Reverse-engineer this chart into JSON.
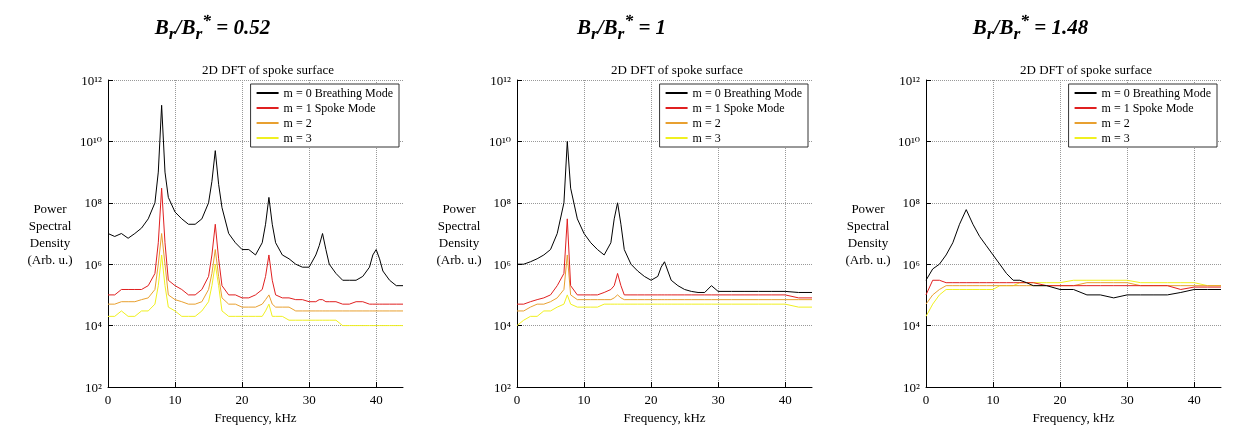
{
  "chart_data": [
    {
      "type": "line",
      "title": "B$_{r}$/B$_{r}$$^{*}$ = 0.52",
      "subtitle": "2D DFT of spoke surface",
      "xlabel": "Frequency, kHz",
      "ylabel": "Power\nSpectral\nDensity\n(Arb. u.)",
      "x": [
        0,
        1,
        2,
        3,
        4,
        5,
        6,
        7,
        7.5,
        8,
        8.5,
        9,
        10,
        11,
        12,
        13,
        14,
        15,
        15.5,
        16,
        16.5,
        17,
        18,
        19,
        20,
        21,
        22,
        23,
        23.5,
        24,
        24.5,
        25,
        26,
        27,
        28,
        29,
        30,
        31,
        31.5,
        32,
        32.5,
        33,
        34,
        35,
        36,
        37,
        38,
        39,
        39.5,
        40,
        40.5,
        41,
        42,
        43,
        44
      ],
      "series": [
        {
          "name": "m = 0 Breathing Mode",
          "color": "#000000",
          "values": [
            10000000.0,
            8000000.0,
            10000000.0,
            7000000.0,
            10000000.0,
            15000000.0,
            30000000.0,
            100000000.0,
            1000000000.0,
            150000000000.0,
            1000000000.0,
            150000000.0,
            50000000.0,
            30000000.0,
            20000000.0,
            20000000.0,
            30000000.0,
            100000000.0,
            500000000.0,
            5000000000.0,
            400000000.0,
            70000000.0,
            10000000.0,
            5000000.0,
            3000000.0,
            3000000.0,
            2000000.0,
            5000000.0,
            20000000.0,
            150000000.0,
            20000000.0,
            5000000.0,
            2000000.0,
            1500000.0,
            1000000.0,
            800000.0,
            800000.0,
            2000000.0,
            4000000.0,
            10000000.0,
            3000000.0,
            1000000.0,
            500000.0,
            300000.0,
            300000.0,
            300000.0,
            400000.0,
            800000.0,
            2000000.0,
            3000000.0,
            1500000.0,
            600000.0,
            300000.0,
            200000.0,
            200000.0
          ]
        },
        {
          "name": "m = 1 Spoke Mode",
          "color": "#e02020",
          "values": [
            100000.0,
            100000.0,
            150000.0,
            150000.0,
            150000.0,
            150000.0,
            200000.0,
            500000.0,
            5000000.0,
            300000000.0,
            5000000.0,
            300000.0,
            200000.0,
            150000.0,
            100000.0,
            100000.0,
            150000.0,
            400000.0,
            2000000.0,
            20000000.0,
            1500000.0,
            200000.0,
            100000.0,
            100000.0,
            80000.0,
            80000.0,
            100000.0,
            150000.0,
            400000.0,
            2000000.0,
            300000.0,
            100000.0,
            80000.0,
            80000.0,
            70000.0,
            70000.0,
            60000.0,
            60000.0,
            70000.0,
            70000.0,
            60000.0,
            60000.0,
            60000.0,
            50000.0,
            50000.0,
            60000.0,
            60000.0,
            50000.0,
            50000.0,
            50000.0,
            50000.0,
            50000.0,
            50000.0,
            50000.0,
            50000.0
          ]
        },
        {
          "name": "m = 2",
          "color": "#e8a030",
          "values": [
            50000.0,
            50000.0,
            60000.0,
            60000.0,
            60000.0,
            70000.0,
            80000.0,
            150000.0,
            1000000.0,
            10000000.0,
            1000000.0,
            100000.0,
            70000.0,
            60000.0,
            50000.0,
            50000.0,
            60000.0,
            150000.0,
            500000.0,
            3000000.0,
            400000.0,
            80000.0,
            50000.0,
            50000.0,
            40000.0,
            40000.0,
            40000.0,
            50000.0,
            70000.0,
            100000.0,
            50000.0,
            40000.0,
            40000.0,
            40000.0,
            30000.0,
            30000.0,
            30000.0,
            30000.0,
            30000.0,
            30000.0,
            30000.0,
            30000.0,
            30000.0,
            30000.0,
            30000.0,
            30000.0,
            30000.0,
            30000.0,
            30000.0,
            30000.0,
            30000.0,
            30000.0,
            30000.0,
            30000.0,
            30000.0
          ]
        },
        {
          "name": "m = 3",
          "color": "#f0f020",
          "values": [
            20000.0,
            20000.0,
            30000.0,
            20000.0,
            20000.0,
            30000.0,
            30000.0,
            50000.0,
            200000.0,
            2000000.0,
            200000.0,
            40000.0,
            30000.0,
            20000.0,
            20000.0,
            20000.0,
            30000.0,
            60000.0,
            200000.0,
            1000000.0,
            200000.0,
            30000.0,
            20000.0,
            20000.0,
            20000.0,
            20000.0,
            20000.0,
            20000.0,
            30000.0,
            50000.0,
            20000.0,
            20000.0,
            20000.0,
            15000.0,
            15000.0,
            15000.0,
            15000.0,
            15000.0,
            15000.0,
            15000.0,
            15000.0,
            15000.0,
            15000.0,
            10000.0,
            10000.0,
            10000.0,
            10000.0,
            10000.0,
            10000.0,
            10000.0,
            10000.0,
            10000.0,
            10000.0,
            10000.0,
            10000.0
          ]
        }
      ],
      "xlim": [
        0,
        44
      ],
      "xticks": [
        0,
        10,
        20,
        30,
        40
      ],
      "ylim": [
        100,
        1000000000000.0
      ],
      "yticks": [
        {
          "value": 100,
          "label": "10²"
        },
        {
          "value": 10000,
          "label": "10⁴"
        },
        {
          "value": 1000000.0,
          "label": "10⁶"
        },
        {
          "value": 100000000.0,
          "label": "10⁸"
        },
        {
          "value": 10000000000.0,
          "label": "10¹⁰"
        },
        {
          "value": 1000000000000.0,
          "label": "10¹²"
        }
      ],
      "log": "y",
      "grid": true,
      "legend": "top right"
    },
    {
      "type": "line",
      "title": "B$_{r}$/B$_{r}$$^{*}$ = 1",
      "subtitle": "2D DFT of spoke surface",
      "xlabel": "Frequency, kHz",
      "ylabel": "Power\nSpectral\nDensity\n(Arb. u.)",
      "x": [
        0,
        1,
        2,
        3,
        4,
        5,
        6,
        7,
        7.5,
        8,
        9,
        10,
        11,
        12,
        13,
        14,
        14.5,
        15,
        15.5,
        16,
        17,
        18,
        19,
        20,
        21,
        21.5,
        22,
        22.5,
        23,
        24,
        25,
        26,
        27,
        28,
        29,
        30,
        32,
        34,
        36,
        38,
        40,
        42,
        44
      ],
      "series": [
        {
          "name": "m = 0 Breathing Mode",
          "color": "#000000",
          "values": [
            1000000.0,
            1000000.0,
            1200000.0,
            1500000.0,
            2000000.0,
            3000000.0,
            10000000.0,
            100000000.0,
            10000000000.0,
            300000000.0,
            30000000.0,
            10000000.0,
            5000000.0,
            3000000.0,
            2000000.0,
            5000000.0,
            30000000.0,
            100000000.0,
            20000000.0,
            3000000.0,
            1000000.0,
            600000.0,
            400000.0,
            300000.0,
            400000.0,
            800000.0,
            1200000.0,
            600000.0,
            300000.0,
            200000.0,
            150000.0,
            130000.0,
            120000.0,
            120000.0,
            200000.0,
            130000.0,
            130000.0,
            130000.0,
            130000.0,
            130000.0,
            130000.0,
            120000.0,
            120000.0
          ]
        },
        {
          "name": "m = 1 Spoke Mode",
          "color": "#e02020",
          "values": [
            50000.0,
            50000.0,
            60000.0,
            70000.0,
            80000.0,
            100000.0,
            200000.0,
            500000.0,
            30000000.0,
            200000.0,
            100000.0,
            100000.0,
            100000.0,
            100000.0,
            120000.0,
            150000.0,
            200000.0,
            500000.0,
            200000.0,
            100000.0,
            100000.0,
            100000.0,
            100000.0,
            100000.0,
            100000.0,
            100000.0,
            100000.0,
            100000.0,
            100000.0,
            100000.0,
            100000.0,
            100000.0,
            100000.0,
            100000.0,
            100000.0,
            100000.0,
            100000.0,
            100000.0,
            100000.0,
            100000.0,
            100000.0,
            80000.0,
            80000.0
          ]
        },
        {
          "name": "m = 2",
          "color": "#e8a030",
          "values": [
            30000.0,
            30000.0,
            40000.0,
            50000.0,
            50000.0,
            60000.0,
            80000.0,
            150000.0,
            2000000.0,
            100000.0,
            70000.0,
            70000.0,
            70000.0,
            70000.0,
            70000.0,
            70000.0,
            80000.0,
            100000.0,
            80000.0,
            70000.0,
            70000.0,
            70000.0,
            70000.0,
            70000.0,
            70000.0,
            70000.0,
            70000.0,
            70000.0,
            70000.0,
            70000.0,
            70000.0,
            70000.0,
            70000.0,
            70000.0,
            70000.0,
            70000.0,
            70000.0,
            70000.0,
            70000.0,
            70000.0,
            70000.0,
            70000.0,
            70000.0
          ]
        },
        {
          "name": "m = 3",
          "color": "#f0f020",
          "values": [
            10000.0,
            15000.0,
            20000.0,
            20000.0,
            30000.0,
            30000.0,
            40000.0,
            50000.0,
            100000.0,
            50000.0,
            40000.0,
            40000.0,
            40000.0,
            40000.0,
            50000.0,
            50000.0,
            50000.0,
            50000.0,
            50000.0,
            50000.0,
            50000.0,
            50000.0,
            50000.0,
            50000.0,
            50000.0,
            50000.0,
            50000.0,
            50000.0,
            50000.0,
            50000.0,
            50000.0,
            50000.0,
            50000.0,
            50000.0,
            50000.0,
            50000.0,
            50000.0,
            50000.0,
            50000.0,
            50000.0,
            50000.0,
            40000.0,
            40000.0
          ]
        }
      ],
      "xlim": [
        0,
        44
      ],
      "xticks": [
        0,
        10,
        20,
        30,
        40
      ],
      "ylim": [
        100,
        1000000000000.0
      ],
      "yticks": [
        {
          "value": 100,
          "label": "10²"
        },
        {
          "value": 10000,
          "label": "10⁴"
        },
        {
          "value": 1000000.0,
          "label": "10⁶"
        },
        {
          "value": 100000000.0,
          "label": "10⁸"
        },
        {
          "value": 10000000000.0,
          "label": "10¹⁰"
        },
        {
          "value": 1000000000000.0,
          "label": "10¹²"
        }
      ],
      "log": "y",
      "grid": true,
      "legend": "top right"
    },
    {
      "type": "line",
      "title": "B$_{r}$/B$_{r}$$^{*}$ = 1.48",
      "subtitle": "2D DFT of spoke surface",
      "xlabel": "Frequency, kHz",
      "ylabel": "Power\nSpectral\nDensity\n(Arb. u.)",
      "x": [
        0,
        1,
        2,
        3,
        4,
        5,
        6,
        7,
        8,
        9,
        10,
        11,
        12,
        13,
        14,
        15,
        16,
        18,
        20,
        22,
        24,
        26,
        28,
        30,
        32,
        34,
        36,
        38,
        40,
        42,
        44
      ],
      "series": [
        {
          "name": "m = 0 Breathing Mode",
          "color": "#000000",
          "values": [
            300000.0,
            700000.0,
            1000000.0,
            2000000.0,
            5000000.0,
            20000000.0,
            60000000.0,
            20000000.0,
            8000000.0,
            4000000.0,
            2000000.0,
            1000000.0,
            500000.0,
            300000.0,
            300000.0,
            250000.0,
            200000.0,
            200000.0,
            150000.0,
            150000.0,
            100000.0,
            100000.0,
            80000.0,
            100000.0,
            100000.0,
            100000.0,
            100000.0,
            120000.0,
            150000.0,
            150000.0,
            150000.0
          ]
        },
        {
          "name": "m = 1 Spoke Mode",
          "color": "#e02020",
          "values": [
            100000.0,
            300000.0,
            300000.0,
            250000.0,
            250000.0,
            250000.0,
            250000.0,
            250000.0,
            250000.0,
            250000.0,
            250000.0,
            250000.0,
            250000.0,
            250000.0,
            250000.0,
            250000.0,
            250000.0,
            200000.0,
            200000.0,
            200000.0,
            200000.0,
            200000.0,
            200000.0,
            200000.0,
            200000.0,
            200000.0,
            200000.0,
            150000.0,
            180000.0,
            180000.0,
            180000.0
          ]
        },
        {
          "name": "m = 2",
          "color": "#e8a030",
          "values": [
            50000.0,
            100000.0,
            150000.0,
            200000.0,
            200000.0,
            200000.0,
            200000.0,
            200000.0,
            200000.0,
            200000.0,
            200000.0,
            200000.0,
            200000.0,
            200000.0,
            200000.0,
            200000.0,
            200000.0,
            200000.0,
            200000.0,
            200000.0,
            250000.0,
            250000.0,
            250000.0,
            250000.0,
            200000.0,
            200000.0,
            200000.0,
            200000.0,
            200000.0,
            200000.0,
            200000.0
          ]
        },
        {
          "name": "m = 3",
          "color": "#f0f020",
          "values": [
            20000.0,
            50000.0,
            100000.0,
            150000.0,
            150000.0,
            150000.0,
            150000.0,
            150000.0,
            150000.0,
            150000.0,
            150000.0,
            200000.0,
            200000.0,
            200000.0,
            250000.0,
            250000.0,
            250000.0,
            250000.0,
            250000.0,
            300000.0,
            300000.0,
            300000.0,
            300000.0,
            300000.0,
            250000.0,
            250000.0,
            250000.0,
            250000.0,
            250000.0,
            200000.0,
            200000.0
          ]
        }
      ],
      "xlim": [
        0,
        44
      ],
      "xticks": [
        0,
        10,
        20,
        30,
        40
      ],
      "ylim": [
        100,
        1000000000000.0
      ],
      "yticks": [
        {
          "value": 100,
          "label": "10²"
        },
        {
          "value": 10000,
          "label": "10⁴"
        },
        {
          "value": 1000000.0,
          "label": "10⁶"
        },
        {
          "value": 100000000.0,
          "label": "10⁸"
        },
        {
          "value": 10000000000.0,
          "label": "10¹⁰"
        },
        {
          "value": 1000000000000.0,
          "label": "10¹²"
        }
      ],
      "log": "y",
      "grid": true,
      "legend": "top right"
    }
  ]
}
